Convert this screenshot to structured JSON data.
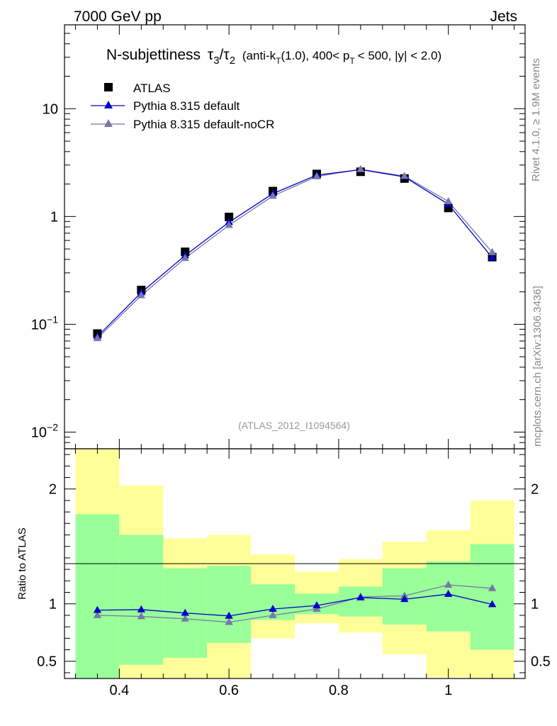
{
  "header": {
    "left": "7000 GeV pp",
    "right": "Jets"
  },
  "side_labels": {
    "rivet": "Rivet 4.1.0, ≥ 1.9M events",
    "mcplots": "mcplots.cern.ch [arXiv:1306.3436]"
  },
  "colors": {
    "atlas": "#000000",
    "default": "#0000cc",
    "nocr": "#7777aa",
    "band_inner": "#99ff99",
    "band_outer": "#ffff99"
  },
  "chart_data": [
    {
      "type": "scatter",
      "title": "N-subjettiness τ3/τ2 (anti-kT(1.0), 400< pT < 500, |y| < 2.0)",
      "title_parts": {
        "main": "N-subjettiness",
        "tau": "τ",
        "sub3": "3",
        "slash": "/",
        "sub2": "2",
        "cuts_a": "(anti-k",
        "sub_t1": "T",
        "cuts_b": "(1.0), 400< p",
        "sub_t2": "T",
        "cuts_c": "< 500, |y| < 2.0)"
      },
      "watermark": "(ATLAS_2012_I1094564)",
      "yscale": "log",
      "ylim": [
        0.007,
        60
      ],
      "yticks": [
        {
          "value": 0.01,
          "base": "10",
          "exp": "−2"
        },
        {
          "value": 0.1,
          "base": "10",
          "exp": "−1"
        },
        {
          "value": 1,
          "label": "1"
        },
        {
          "value": 10,
          "label": "10"
        }
      ],
      "xlim": [
        0.3,
        1.14
      ],
      "legend_position": "top-left",
      "series": [
        {
          "name": "ATLAS",
          "marker": "square",
          "x": [
            0.36,
            0.44,
            0.52,
            0.6,
            0.68,
            0.76,
            0.84,
            0.92,
            1.0,
            1.08
          ],
          "y": [
            0.082,
            0.208,
            0.47,
            0.99,
            1.72,
            2.48,
            2.6,
            2.25,
            1.2,
            0.42
          ]
        },
        {
          "name": "Pythia 8.315 default",
          "marker": "triangle",
          "x": [
            0.36,
            0.44,
            0.52,
            0.6,
            0.68,
            0.76,
            0.84,
            0.92,
            1.0,
            1.08
          ],
          "y": [
            0.077,
            0.197,
            0.435,
            0.885,
            1.63,
            2.42,
            2.72,
            2.33,
            1.3,
            0.415
          ]
        },
        {
          "name": "Pythia 8.315 default-noCR",
          "marker": "triangle",
          "x": [
            0.36,
            0.44,
            0.52,
            0.6,
            0.68,
            0.76,
            0.84,
            0.92,
            1.0,
            1.08
          ],
          "y": [
            0.074,
            0.185,
            0.41,
            0.83,
            1.55,
            2.35,
            2.74,
            2.37,
            1.38,
            0.465
          ]
        }
      ]
    },
    {
      "type": "scatter",
      "ylabel": "Ratio to ATLAS",
      "ylim": [
        0.35,
        2.35
      ],
      "yticks": [
        0.5,
        1,
        2
      ],
      "ytick_labels": [
        "0.5",
        "1",
        "2"
      ],
      "xlim": [
        0.3,
        1.14
      ],
      "xticks": [
        0.4,
        0.6,
        0.8,
        1.0
      ],
      "xtick_labels": [
        "0.4",
        "0.6",
        "0.8",
        "1"
      ],
      "bands": [
        {
          "xlo": 0.32,
          "xhi": 0.4,
          "inner": [
            0.3,
            1.78
          ],
          "outer": [
            0.3,
            2.4
          ]
        },
        {
          "xlo": 0.4,
          "xhi": 0.48,
          "inner": [
            0.47,
            1.6
          ],
          "outer": [
            0.3,
            2.03
          ]
        },
        {
          "xlo": 0.48,
          "xhi": 0.56,
          "inner": [
            0.53,
            1.31
          ],
          "outer": [
            0.3,
            1.57
          ]
        },
        {
          "xlo": 0.56,
          "xhi": 0.64,
          "inner": [
            0.66,
            1.33
          ],
          "outer": [
            0.3,
            1.6
          ]
        },
        {
          "xlo": 0.64,
          "xhi": 0.72,
          "inner": [
            0.86,
            1.17
          ],
          "outer": [
            0.7,
            1.43
          ]
        },
        {
          "xlo": 0.72,
          "xhi": 0.8,
          "inner": [
            0.91,
            1.09
          ],
          "outer": [
            0.83,
            1.28
          ]
        },
        {
          "xlo": 0.8,
          "xhi": 0.88,
          "inner": [
            0.89,
            1.15
          ],
          "outer": [
            0.75,
            1.39
          ]
        },
        {
          "xlo": 0.88,
          "xhi": 0.96,
          "inner": [
            0.82,
            1.31
          ],
          "outer": [
            0.56,
            1.54
          ]
        },
        {
          "xlo": 0.96,
          "xhi": 1.04,
          "inner": [
            0.76,
            1.37
          ],
          "outer": [
            0.36,
            1.64
          ]
        },
        {
          "xlo": 1.04,
          "xhi": 1.12,
          "inner": [
            0.6,
            1.52
          ],
          "outer": [
            0.3,
            1.9
          ]
        }
      ],
      "series": [
        {
          "name": "Pythia 8.315 default",
          "x": [
            0.36,
            0.44,
            0.52,
            0.6,
            0.68,
            0.76,
            0.84,
            0.92,
            1.0,
            1.08
          ],
          "y": [
            0.945,
            0.95,
            0.92,
            0.895,
            0.955,
            0.985,
            1.055,
            1.04,
            1.085,
            0.995
          ]
        },
        {
          "name": "Pythia 8.315 default-noCR",
          "x": [
            0.36,
            0.44,
            0.52,
            0.6,
            0.68,
            0.76,
            0.84,
            0.92,
            1.0,
            1.08
          ],
          "y": [
            0.9,
            0.89,
            0.87,
            0.84,
            0.9,
            0.955,
            1.06,
            1.07,
            1.165,
            1.135
          ]
        }
      ]
    }
  ]
}
